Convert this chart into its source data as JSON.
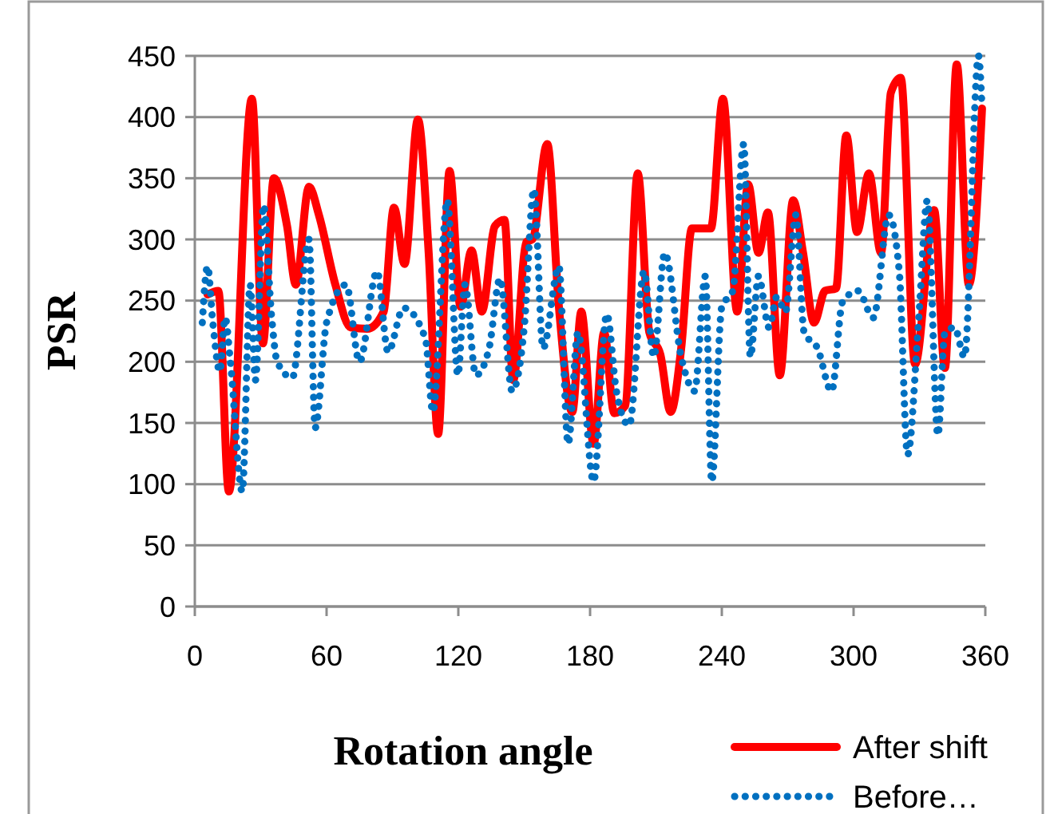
{
  "chart_data": {
    "type": "line",
    "xlabel": "Rotation angle",
    "ylabel": "PSR",
    "xlim": [
      0,
      360
    ],
    "xticks": [
      0,
      60,
      120,
      180,
      240,
      300,
      360
    ],
    "ylim": [
      0,
      450
    ],
    "yticks": [
      0,
      50,
      100,
      150,
      200,
      250,
      300,
      350,
      400,
      450
    ],
    "grid": "y",
    "legend": "bottom right",
    "series": [
      {
        "name": "After shift",
        "color": "#ff0000",
        "line_style": "solid",
        "x": [
          5.8,
          10.7,
          15.5,
          26,
          31,
          36,
          42,
          46,
          52,
          56.5,
          64,
          71,
          78.5,
          86,
          90.7,
          95.5,
          101.6,
          106.5,
          110.8,
          116,
          121,
          126,
          130.7,
          136.7,
          141,
          145,
          151,
          153.7,
          160.5,
          165.8,
          171.9,
          176,
          181.6,
          186.4,
          191,
          196,
          201.7,
          207,
          212,
          216.7,
          221.5,
          226.4,
          235,
          240.5,
          247,
          252,
          256.7,
          261,
          266.4,
          272.5,
          277,
          282,
          287,
          292,
          296.7,
          301.6,
          307,
          312.5,
          317,
          321.5,
          328,
          336.7,
          341.6,
          347,
          352.5,
          358.5
        ],
        "values": [
          255,
          258,
          94,
          415,
          215,
          350,
          311,
          263,
          343,
          320,
          263,
          228,
          227,
          241,
          326,
          280,
          398,
          289,
          141,
          356,
          245,
          291,
          241,
          311,
          316,
          185,
          298,
          300,
          378,
          245,
          159,
          241,
          133,
          224,
          158,
          164,
          354,
          224,
          206,
          159,
          211,
          309,
          309,
          415,
          241,
          345,
          289,
          322,
          189,
          332,
          289,
          232,
          258,
          260,
          385,
          306,
          354,
          289,
          420,
          432,
          198,
          324,
          195,
          443,
          263,
          407
        ]
      },
      {
        "name": "Before…",
        "color": "#0070c0",
        "line_style": "dotted",
        "x": [
          3.4,
          5.8,
          8.2,
          11.4,
          13.8,
          16.2,
          21.6,
          25.2,
          27.6,
          31.3,
          35,
          37.5,
          44.4,
          52,
          54.8,
          60,
          68.9,
          75,
          83,
          88,
          95,
          105,
          108.4,
          115,
          119.8,
          123,
          128,
          134,
          139,
          144.5,
          150,
          154.4,
          158.6,
          165.8,
          170,
          174.5,
          181.6,
          187.6,
          192,
          197.8,
          204.6,
          209,
          214,
          221.5,
          227.6,
          232.5,
          235.4,
          240,
          245,
          250,
          253,
          256.7,
          261.5,
          265,
          269,
          273.7,
          277.5,
          283.6,
          290,
          295,
          302,
          309,
          316,
          320.8,
          324.6,
          329.7,
          333.6,
          338.4,
          341.6,
          346,
          350.5,
          356.9,
          358.5
        ],
        "values": [
          232,
          278,
          232,
          192,
          236,
          200,
          94,
          263,
          185,
          328,
          236,
          200,
          187,
          300,
          146,
          232,
          263,
          200,
          274,
          208,
          244,
          219,
          159,
          332,
          189,
          263,
          189,
          211,
          268,
          176,
          228,
          341,
          211,
          278,
          133,
          224,
          102,
          239,
          176,
          148,
          274,
          204,
          289,
          204,
          176,
          270,
          102,
          245,
          258,
          378,
          204,
          270,
          228,
          253,
          241,
          320,
          224,
          211,
          176,
          249,
          258,
          236,
          320,
          274,
          124,
          236,
          332,
          140,
          224,
          228,
          204,
          450,
          407
        ]
      }
    ]
  }
}
